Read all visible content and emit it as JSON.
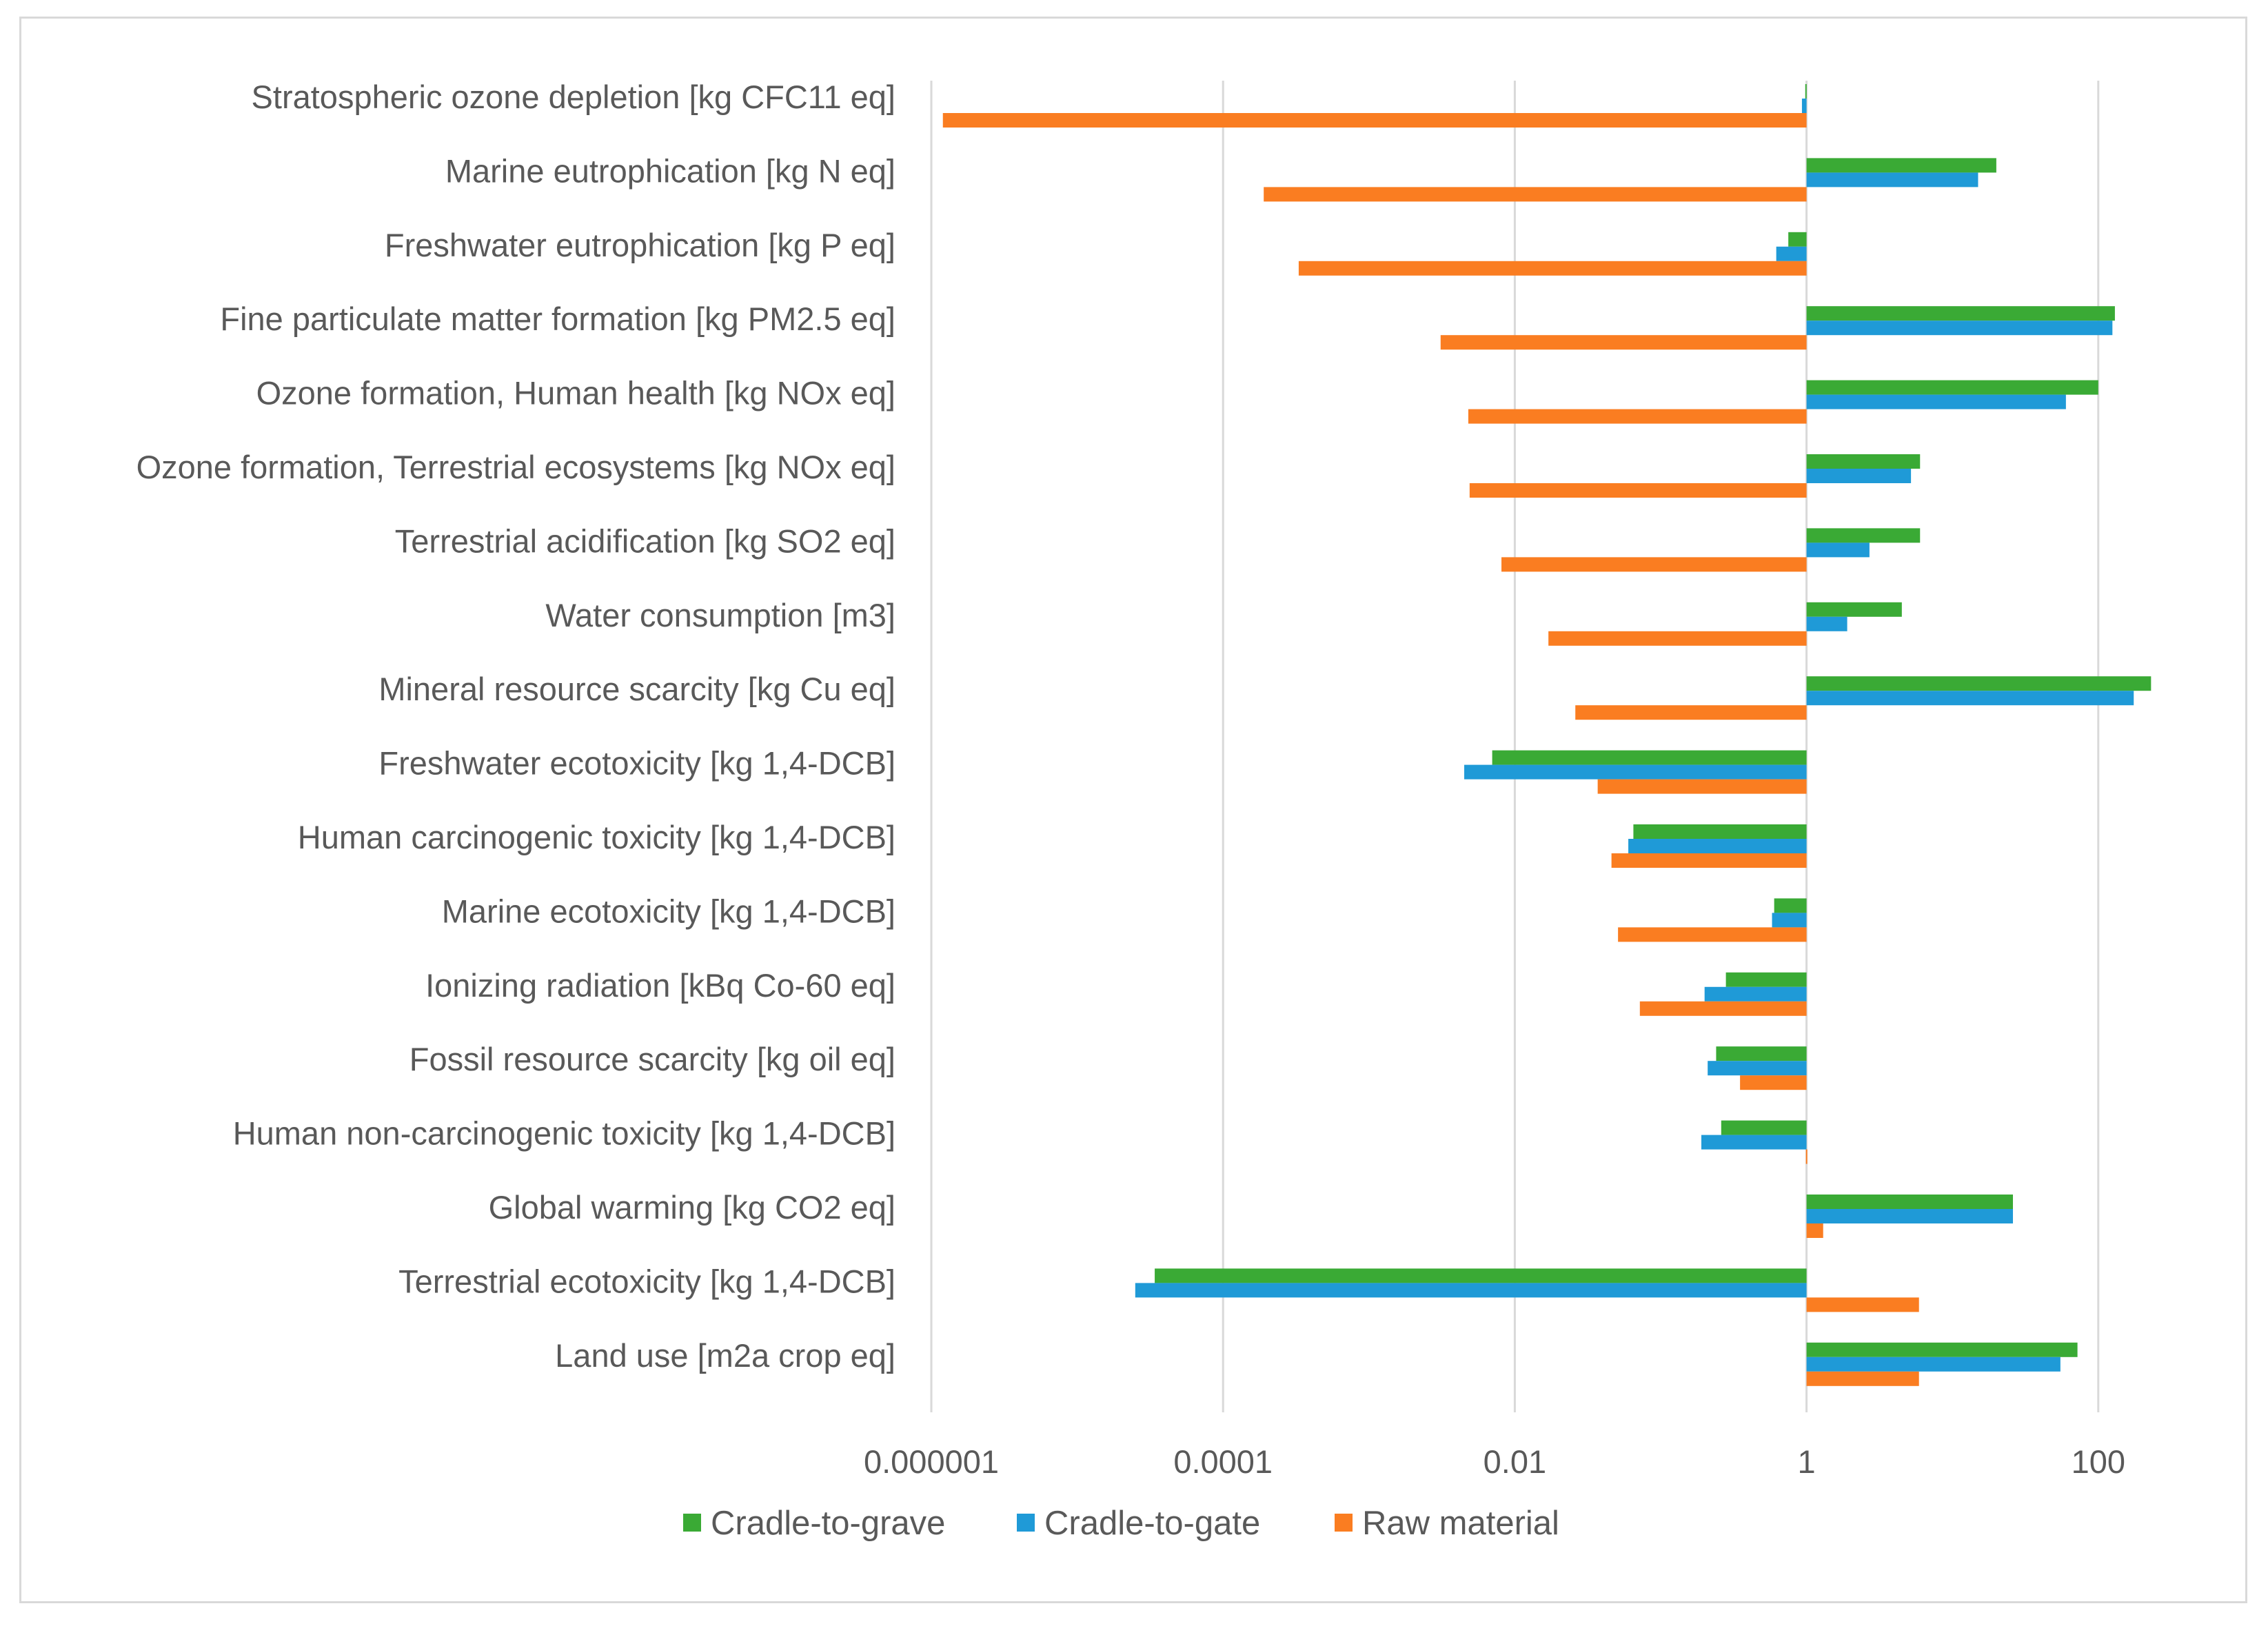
{
  "chart_data": {
    "type": "bar",
    "orientation": "horizontal",
    "x_scale": "log",
    "title": "",
    "xlabel": "",
    "ylabel": "",
    "xlim": [
      1e-06,
      1000
    ],
    "x_ticks": [
      1e-06,
      0.0001,
      0.01,
      1,
      100
    ],
    "x_tick_labels": [
      "0.000001",
      "0.0001",
      "0.01",
      "1",
      "100"
    ],
    "grid": "vertical",
    "legend_position": "bottom",
    "categories": [
      "Stratospheric ozone depletion [kg CFC11 eq]",
      "Marine eutrophication [kg N eq]",
      "Freshwater eutrophication [kg P eq]",
      "Fine particulate matter formation [kg PM2.5 eq]",
      "Ozone formation, Human health [kg NOx eq]",
      "Ozone formation, Terrestrial ecosystems [kg NOx eq]",
      "Terrestrial acidification [kg SO2 eq]",
      "Water consumption [m3]",
      "Mineral resource scarcity [kg Cu eq]",
      "Freshwater ecotoxicity [kg 1,4-DCB]",
      "Human carcinogenic toxicity [kg 1,4-DCB]",
      "Marine ecotoxicity [kg 1,4-DCB]",
      "Ionizing radiation [kBq Co-60 eq]",
      "Fossil resource scarcity [kg oil eq]",
      "Human non-carcinogenic toxicity [kg 1,4-DCB]",
      "Global warming [kg CO2 eq]",
      "Terrestrial ecotoxicity [kg 1,4-DCB]",
      "Land use [m2a crop eq]"
    ],
    "series": [
      {
        "name": "Cradle-to-grave",
        "color": "#3aaa35",
        "values": [
          0.98,
          20,
          0.75,
          130,
          100,
          6,
          6,
          4.5,
          230,
          0.007,
          0.065,
          0.6,
          0.28,
          0.24,
          0.26,
          26,
          3.4e-05,
          72
        ]
      },
      {
        "name": "Cradle-to-gate",
        "color": "#1f9ad7",
        "values": [
          0.93,
          15,
          0.62,
          125,
          60,
          5.2,
          2.7,
          1.9,
          175,
          0.0045,
          0.06,
          0.58,
          0.2,
          0.21,
          0.19,
          26,
          2.5e-05,
          55
        ]
      },
      {
        "name": "Raw material",
        "color": "#fa7d21",
        "values": [
          1.2e-06,
          0.00019,
          0.00033,
          0.0031,
          0.0048,
          0.0049,
          0.0081,
          0.017,
          0.026,
          0.037,
          0.046,
          0.051,
          0.072,
          0.35,
          0.99,
          1.3,
          5.9,
          5.9
        ]
      }
    ]
  }
}
